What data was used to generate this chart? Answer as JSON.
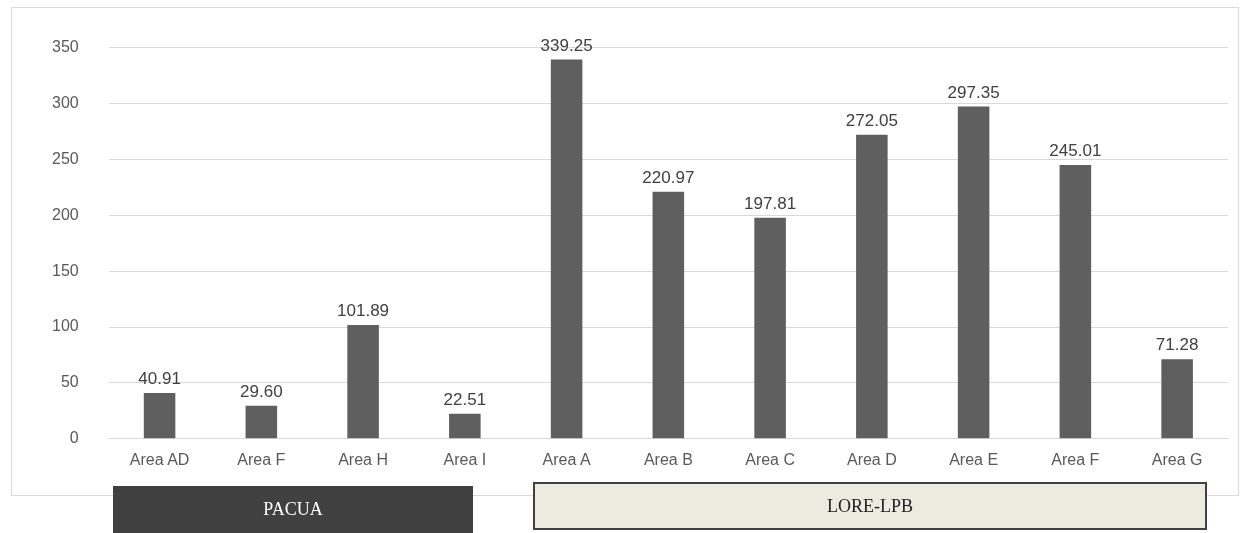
{
  "chart_data": {
    "type": "bar",
    "categories": [
      "Area AD",
      "Area F",
      "Area H",
      "Area I",
      "Area A",
      "Area B",
      "Area C",
      "Area D",
      "Area E",
      "Area F",
      "Area G"
    ],
    "values": [
      40.91,
      29.6,
      101.89,
      22.51,
      339.25,
      220.97,
      197.81,
      272.05,
      297.35,
      245.01,
      71.28
    ],
    "value_labels": [
      "40.91",
      "29.60",
      "101.89",
      "22.51",
      "339.25",
      "220.97",
      "197.81",
      "272.05",
      "297.35",
      "245.01",
      "71.28"
    ],
    "color": "#5f5f5f",
    "ylim": [
      0,
      350
    ],
    "yticks": [
      0,
      50,
      100,
      150,
      200,
      250,
      300,
      350
    ],
    "grid": "y",
    "legend": false,
    "annotations": [
      "PACUA",
      "LORE-LPB"
    ]
  }
}
